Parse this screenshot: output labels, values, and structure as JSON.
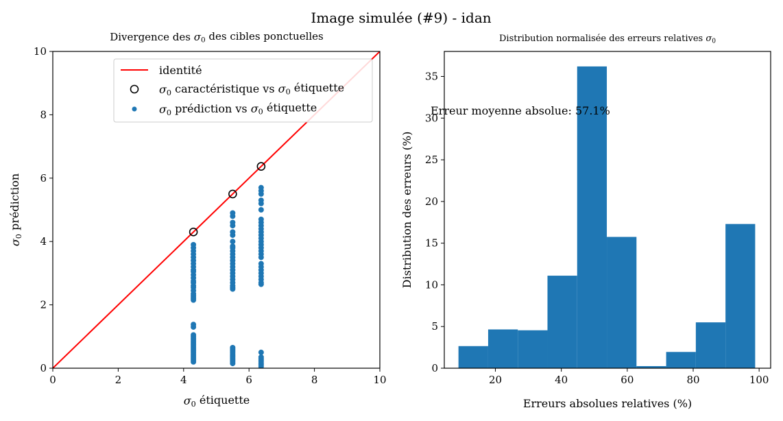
{
  "figure": {
    "suptitle": "Image simulée (#9) - idan"
  },
  "chart_data": [
    {
      "type": "scatter",
      "title": "Divergence des σ₀ des cibles ponctuelles",
      "xlabel": "σ₀ étiquette",
      "ylabel": "σ₀ prédiction",
      "xlim": [
        0,
        10
      ],
      "ylim": [
        0,
        10
      ],
      "xticks": [
        0,
        2,
        4,
        6,
        8,
        10
      ],
      "yticks": [
        0,
        2,
        4,
        6,
        8,
        10
      ],
      "legend_position": "top-right",
      "grid": false,
      "colors": {
        "identity": "#ff0000",
        "prediction": "#1f77b4",
        "characteristic": "#000000"
      },
      "series": [
        {
          "name": "identité",
          "kind": "line",
          "x": [
            0,
            10
          ],
          "y": [
            0,
            10
          ]
        },
        {
          "name": "σ₀ caractéristique vs σ₀ étiquette",
          "kind": "open-circle",
          "x": [
            4.3,
            5.5,
            6.37
          ],
          "y": [
            4.3,
            5.5,
            6.37
          ]
        },
        {
          "name": "σ₀ prédiction vs σ₀ étiquette",
          "kind": "point",
          "groups": [
            {
              "x": 4.3,
              "y": [
                0.2,
                0.25,
                0.3,
                0.35,
                0.4,
                0.45,
                0.5,
                0.55,
                0.6,
                0.65,
                0.7,
                0.75,
                0.8,
                0.85,
                0.9,
                0.95,
                1.0,
                1.05,
                1.3,
                1.38,
                2.15,
                2.2,
                2.25,
                2.3,
                2.35,
                2.45,
                2.55,
                2.6,
                2.7,
                2.75,
                2.85,
                2.95,
                3.05,
                3.1,
                3.2,
                3.3,
                3.4,
                3.5,
                3.6,
                3.7,
                3.8,
                3.9
              ]
            },
            {
              "x": 5.5,
              "y": [
                0.15,
                0.2,
                0.25,
                0.3,
                0.35,
                0.4,
                0.45,
                0.5,
                0.55,
                0.6,
                0.65,
                2.5,
                2.55,
                2.6,
                2.7,
                2.8,
                2.9,
                3.0,
                3.1,
                3.2,
                3.3,
                3.4,
                3.5,
                3.6,
                3.7,
                3.8,
                3.85,
                4.0,
                4.2,
                4.3,
                4.5,
                4.6,
                4.8,
                4.9
              ]
            },
            {
              "x": 6.37,
              "y": [
                0.05,
                0.1,
                0.15,
                0.2,
                0.25,
                0.3,
                0.35,
                0.5,
                2.65,
                2.7,
                2.8,
                2.9,
                3.0,
                3.1,
                3.2,
                3.3,
                3.5,
                3.6,
                3.7,
                3.8,
                3.9,
                4.0,
                4.1,
                4.2,
                4.3,
                4.4,
                4.5,
                4.6,
                4.7,
                5.0,
                5.2,
                5.3,
                5.5,
                5.6,
                5.7
              ]
            }
          ]
        }
      ]
    },
    {
      "type": "bar",
      "title": "Distribution normalisée des erreurs relatives σ₀",
      "xlabel": "Erreurs absolues relatives (%)",
      "ylabel": "Distribution des erreurs (%)",
      "xlim": [
        4.5,
        103.5
      ],
      "ylim": [
        0,
        38
      ],
      "xticks": [
        20,
        40,
        60,
        80,
        100
      ],
      "yticks": [
        0,
        5,
        10,
        15,
        20,
        25,
        30,
        35
      ],
      "grid": false,
      "bar_color": "#1f77b4",
      "bin_edges": [
        8.8,
        17.8,
        26.8,
        35.8,
        44.8,
        53.8,
        62.8,
        71.8,
        80.8,
        89.8,
        98.8
      ],
      "values": [
        2.65,
        4.65,
        4.55,
        11.1,
        36.2,
        15.75,
        0.25,
        1.95,
        5.5,
        17.3
      ],
      "annotation": "Erreur moyenne absolue: 57.1%"
    }
  ]
}
